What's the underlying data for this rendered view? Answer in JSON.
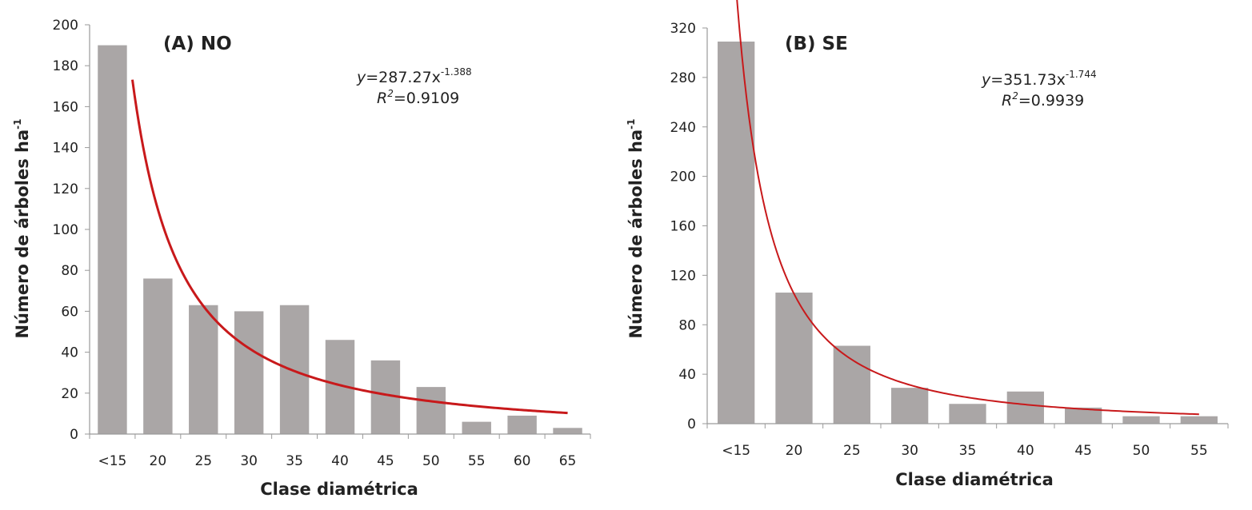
{
  "colors": {
    "bar": "#aaa6a6",
    "curve": "#c8191b",
    "axis": "#9a9a9a"
  },
  "chart_data": [
    {
      "type": "bar",
      "panel": "(A) NO",
      "xlabel": "Clase diamétrica",
      "ylabel": "Número de árboles ha",
      "ylabel_sup": "-1",
      "categories": [
        "<15",
        "20",
        "25",
        "30",
        "35",
        "40",
        "45",
        "50",
        "55",
        "60",
        "65"
      ],
      "values": [
        190,
        76,
        63,
        60,
        63,
        46,
        36,
        23,
        6,
        9,
        3
      ],
      "ylim": [
        0,
        200
      ],
      "yticks": [
        0,
        20,
        40,
        60,
        80,
        100,
        120,
        140,
        160,
        180,
        200
      ],
      "fit": {
        "type": "power",
        "a": 287.27,
        "b": -1.388
      },
      "equation": {
        "y": "y",
        "eq": "=287.27x",
        "exp": "-1.388",
        "r": "R",
        "r_sup": "2",
        "r_val": "=0.9109"
      }
    },
    {
      "type": "bar",
      "panel": "(B) SE",
      "xlabel": "Clase diamétrica",
      "ylabel": "Número de árboles ha",
      "ylabel_sup": "-1",
      "categories": [
        "<15",
        "20",
        "25",
        "30",
        "35",
        "40",
        "45",
        "50",
        "55"
      ],
      "values": [
        309,
        106,
        63,
        29,
        16,
        26,
        13,
        6,
        6
      ],
      "ylim": [
        0,
        320
      ],
      "yticks": [
        0,
        40,
        80,
        120,
        160,
        200,
        240,
        280,
        320
      ],
      "fit": {
        "type": "power",
        "a": 351.73,
        "b": -1.744
      },
      "equation": {
        "y": "y",
        "eq": "=351.73x",
        "exp": "-1.744",
        "r": "R",
        "r_sup": "2",
        "r_val": "=0.9939"
      }
    }
  ]
}
